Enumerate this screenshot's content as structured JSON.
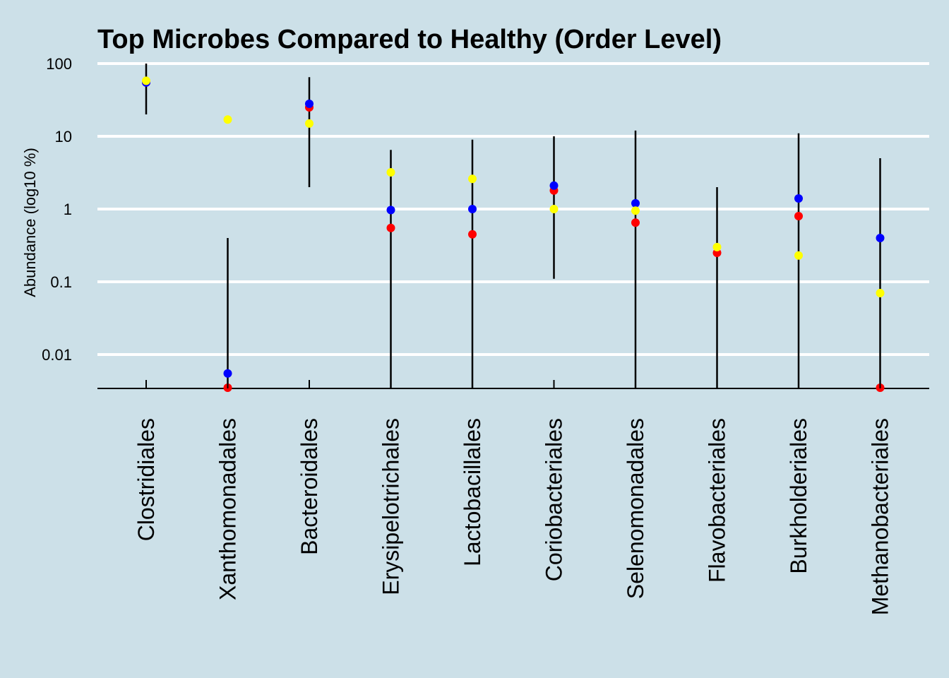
{
  "chart_data": {
    "type": "scatter",
    "title": "Top Microbes Compared to Healthy (Order Level)",
    "ylabel": "Abundance (log10 %)",
    "xlabel": "",
    "y_scale": "log10",
    "ylim": [
      0.0035,
      100
    ],
    "grid": true,
    "grid_color": "#ffffff",
    "background_color": "#cce0e8",
    "yticks": [
      {
        "value": 100,
        "label": "100"
      },
      {
        "value": 10,
        "label": "10"
      },
      {
        "value": 1,
        "label": "1"
      },
      {
        "value": 0.1,
        "label": "0.1"
      },
      {
        "value": 0.01,
        "label": "0.01"
      }
    ],
    "categories": [
      "Clostridiales",
      "Xanthomonadales",
      "Bacteroidales",
      "Erysipelotrichales",
      "Lactobacillales",
      "Coriobacteriales",
      "Selenomonadales",
      "Flavobacteriales",
      "Burkholderiales",
      "Methanobacteriales"
    ],
    "range_lines": [
      {
        "low": 20,
        "high": 100
      },
      {
        "low": 0.0035,
        "high": 0.4
      },
      {
        "low": 2,
        "high": 65
      },
      {
        "low": 0.0035,
        "high": 6.5
      },
      {
        "low": 0.0035,
        "high": 9
      },
      {
        "low": 0.11,
        "high": 10
      },
      {
        "low": 0.0035,
        "high": 12
      },
      {
        "low": 0.0035,
        "high": 2
      },
      {
        "low": 0.0035,
        "high": 11
      },
      {
        "low": 0.0035,
        "high": 5
      }
    ],
    "series": [
      {
        "color": "#ff0000",
        "values": [
          55,
          0.0035,
          25,
          0.55,
          0.45,
          1.8,
          0.65,
          0.25,
          0.8,
          0.0035
        ]
      },
      {
        "color": "#0000ff",
        "values": [
          55,
          0.0055,
          28,
          0.97,
          1.0,
          2.1,
          1.2,
          null,
          1.4,
          0.4
        ]
      },
      {
        "color": "#ffff00",
        "values": [
          58,
          17,
          15,
          3.2,
          2.6,
          1.0,
          0.95,
          0.3,
          0.23,
          0.07
        ]
      }
    ]
  }
}
